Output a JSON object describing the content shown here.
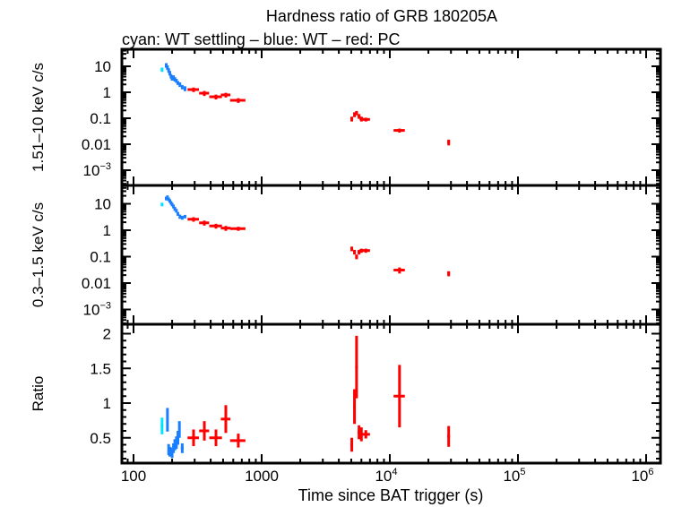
{
  "chart_data": {
    "type": "scatter",
    "title": "Hardness ratio of GRB 180205A",
    "subtitle": "cyan: WT settling – blue: WT – red: PC",
    "xlabel": "Time since BAT trigger (s)",
    "x_scale": "log",
    "xlim": [
      75,
      1200000
    ],
    "x_ticks": [
      {
        "value": 100,
        "label": "100",
        "sup": ""
      },
      {
        "value": 1000,
        "label": "1000",
        "sup": ""
      },
      {
        "value": 10000,
        "label": "10",
        "sup": "4"
      },
      {
        "value": 100000,
        "label": "10",
        "sup": "5"
      },
      {
        "value": 1000000,
        "label": "10",
        "sup": "6"
      }
    ],
    "colors": {
      "wt_settling": "#00e5ff",
      "wt": "#1a7fff",
      "pc": "#ff0000",
      "axis": "#000000"
    },
    "panels": [
      {
        "name": "hard-band",
        "ylabel": "1.51–10 keV c/s",
        "y_scale": "log",
        "ylim": [
          0.0002,
          40
        ],
        "y_ticks": [
          {
            "value": 10,
            "label": "10",
            "sup": ""
          },
          {
            "value": 1,
            "label": "1",
            "sup": ""
          },
          {
            "value": 0.1,
            "label": "0.1",
            "sup": ""
          },
          {
            "value": 0.01,
            "label": "0.01",
            "sup": ""
          },
          {
            "value": 0.001,
            "label": "10",
            "sup": "−3"
          }
        ],
        "series": [
          {
            "name": "WT settling",
            "color_key": "wt_settling",
            "points": [
              [
                167,
                7.5,
                4,
                1.4
              ]
            ]
          },
          {
            "name": "WT",
            "color_key": "wt",
            "points": [
              [
                180,
                11,
                2,
                2.2
              ],
              [
                184,
                9,
                2,
                1.8
              ],
              [
                188,
                7,
                2,
                1.4
              ],
              [
                192,
                5.5,
                2,
                1.1
              ],
              [
                196,
                4.2,
                2,
                0.8
              ],
              [
                200,
                3.5,
                2,
                0.7
              ],
              [
                205,
                3.8,
                2,
                0.7
              ],
              [
                210,
                3.2,
                2,
                0.6
              ],
              [
                216,
                2.8,
                3,
                0.5
              ],
              [
                222,
                2.3,
                3,
                0.4
              ],
              [
                230,
                2.0,
                4,
                0.4
              ],
              [
                240,
                1.6,
                5,
                0.3
              ],
              [
                252,
                1.4,
                6,
                0.3
              ]
            ]
          },
          {
            "name": "PC",
            "color_key": "pc",
            "points": [
              [
                294,
                1.27,
                30,
                0.25
              ],
              [
                357,
                0.92,
                32,
                0.2
              ],
              [
                440,
                0.67,
                50,
                0.14
              ],
              [
                525,
                0.79,
                45,
                0.16
              ],
              [
                657,
                0.49,
                90,
                0.1
              ],
              [
                5050,
                0.095,
                120,
                0.02
              ],
              [
                5300,
                0.14,
                120,
                0.03
              ],
              [
                5500,
                0.16,
                130,
                0.03
              ],
              [
                5750,
                0.12,
                150,
                0.025
              ],
              [
                6000,
                0.095,
                200,
                0.02
              ],
              [
                6500,
                0.09,
                500,
                0.015
              ],
              [
                11900,
                0.034,
                1200,
                0.006
              ],
              [
                28800,
                0.012,
                700,
                0.003
              ]
            ]
          }
        ]
      },
      {
        "name": "soft-band",
        "ylabel": "0.3–1.5 keV c/s",
        "y_scale": "log",
        "ylim": [
          0.0002,
          40
        ],
        "y_ticks": [
          {
            "value": 10,
            "label": "10",
            "sup": ""
          },
          {
            "value": 1,
            "label": "1",
            "sup": ""
          },
          {
            "value": 0.1,
            "label": "0.1",
            "sup": ""
          },
          {
            "value": 0.01,
            "label": "0.01",
            "sup": ""
          },
          {
            "value": 0.001,
            "label": "10",
            "sup": "−3"
          }
        ],
        "series": [
          {
            "name": "WT settling",
            "color_key": "wt_settling",
            "points": [
              [
                167,
                9.5,
                4,
                1.5
              ]
            ]
          },
          {
            "name": "WT",
            "color_key": "wt",
            "points": [
              [
                180,
                16,
                2,
                2.5
              ],
              [
                184,
                18,
                2,
                2.7
              ],
              [
                188,
                15,
                2,
                2.3
              ],
              [
                192,
                13,
                2,
                2
              ],
              [
                196,
                11,
                2,
                1.7
              ],
              [
                200,
                9.5,
                2,
                1.5
              ],
              [
                205,
                8,
                2,
                1.3
              ],
              [
                210,
                6.5,
                2,
                1.1
              ],
              [
                216,
                5.5,
                3,
                0.9
              ],
              [
                222,
                4.2,
                3,
                0.7
              ],
              [
                230,
                3.3,
                4,
                0.6
              ],
              [
                240,
                3.0,
                5,
                0.5
              ],
              [
                252,
                3.3,
                6,
                0.5
              ]
            ]
          },
          {
            "name": "PC",
            "color_key": "pc",
            "points": [
              [
                294,
                2.6,
                30,
                0.5
              ],
              [
                357,
                1.9,
                32,
                0.4
              ],
              [
                440,
                1.45,
                50,
                0.3
              ],
              [
                525,
                1.2,
                45,
                0.25
              ],
              [
                657,
                1.15,
                90,
                0.2
              ],
              [
                5050,
                0.2,
                120,
                0.04
              ],
              [
                5300,
                0.15,
                120,
                0.03
              ],
              [
                5500,
                0.1,
                130,
                0.02
              ],
              [
                5750,
                0.15,
                150,
                0.03
              ],
              [
                6000,
                0.17,
                200,
                0.03
              ],
              [
                6500,
                0.17,
                500,
                0.03
              ],
              [
                11900,
                0.031,
                1200,
                0.008
              ],
              [
                28800,
                0.023,
                700,
                0.005
              ]
            ]
          }
        ]
      },
      {
        "name": "ratio",
        "ylabel": "Ratio",
        "y_scale": "linear",
        "ylim": [
          0.15,
          2.1
        ],
        "y_ticks": [
          {
            "value": 2,
            "label": "2",
            "sup": ""
          },
          {
            "value": 1.5,
            "label": "1.5",
            "sup": ""
          },
          {
            "value": 1,
            "label": "1",
            "sup": ""
          },
          {
            "value": 0.5,
            "label": "0.5",
            "sup": ""
          }
        ],
        "series": [
          {
            "name": "WT settling",
            "color_key": "wt_settling",
            "points": [
              [
                167,
                0.67,
                4,
                0.12
              ]
            ]
          },
          {
            "name": "WT",
            "color_key": "wt",
            "points": [
              [
                184,
                0.76,
                2,
                0.17
              ],
              [
                188,
                0.33,
                2,
                0.08
              ],
              [
                192,
                0.3,
                2,
                0.07
              ],
              [
                196,
                0.3,
                2,
                0.06
              ],
              [
                200,
                0.27,
                2,
                0.06
              ],
              [
                205,
                0.35,
                2,
                0.07
              ],
              [
                210,
                0.4,
                2,
                0.08
              ],
              [
                216,
                0.43,
                3,
                0.09
              ],
              [
                222,
                0.5,
                3,
                0.1
              ],
              [
                228,
                0.62,
                3,
                0.12
              ],
              [
                240,
                0.35,
                6,
                0.07
              ]
            ]
          },
          {
            "name": "PC",
            "color_key": "pc",
            "points": [
              [
                294,
                0.5,
                30,
                0.12
              ],
              [
                357,
                0.6,
                32,
                0.14
              ],
              [
                440,
                0.5,
                50,
                0.12
              ],
              [
                525,
                0.77,
                45,
                0.2
              ],
              [
                657,
                0.46,
                90,
                0.1
              ],
              [
                5050,
                0.4,
                120,
                0.1
              ],
              [
                5300,
                0.95,
                120,
                0.25
              ],
              [
                5500,
                1.52,
                130,
                0.45
              ],
              [
                5750,
                0.58,
                150,
                0.1
              ],
              [
                6000,
                0.55,
                200,
                0.1
              ],
              [
                6500,
                0.55,
                500,
                0.06
              ],
              [
                11900,
                1.1,
                1200,
                0.45
              ],
              [
                28800,
                0.52,
                700,
                0.15
              ]
            ]
          }
        ]
      }
    ]
  }
}
